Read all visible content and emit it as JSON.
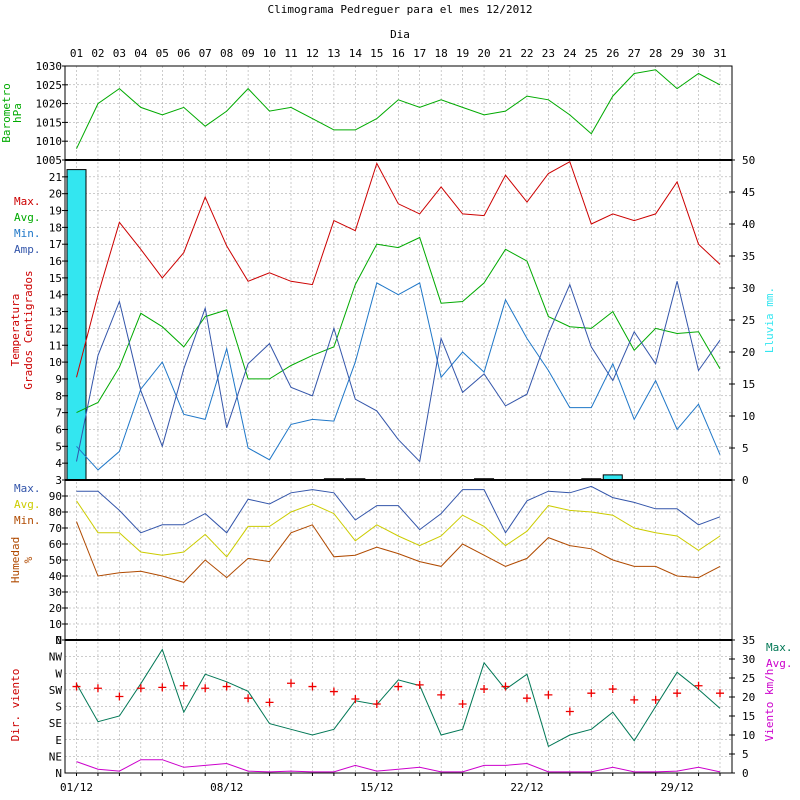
{
  "title": "Climograma Pedreguer para el mes 12/2012",
  "day_axis_label": "Dia",
  "days": [
    "01",
    "02",
    "03",
    "04",
    "05",
    "06",
    "07",
    "08",
    "09",
    "10",
    "11",
    "12",
    "13",
    "14",
    "15",
    "16",
    "17",
    "18",
    "19",
    "20",
    "21",
    "22",
    "23",
    "24",
    "25",
    "26",
    "27",
    "28",
    "29",
    "30",
    "31"
  ],
  "date_ticks": [
    {
      "day": 1,
      "label": "01/12"
    },
    {
      "day": 8,
      "label": "08/12"
    },
    {
      "day": 15,
      "label": "15/12"
    },
    {
      "day": 22,
      "label": "22/12"
    },
    {
      "day": 29,
      "label": "29/12"
    }
  ],
  "colors": {
    "red": "#cc0000",
    "green": "#00aa00",
    "blue": "#1f77c8",
    "navy": "#3355aa",
    "rain": "#33e6f0",
    "yellow": "#cccc00",
    "brown": "#b04a00",
    "teal": "#007755",
    "magenta": "#cc00cc",
    "grid": "#999999"
  },
  "chart_data": [
    {
      "type": "line",
      "panel": "barometro",
      "ylabel": "Barometro hPa",
      "ylim": [
        1005,
        1030
      ],
      "yticks": [
        1005,
        1010,
        1015,
        1020,
        1025,
        1030
      ],
      "series": [
        {
          "name": "Barometro",
          "values": [
            1008,
            1020,
            1024,
            1019,
            1017,
            1019,
            1014,
            1018,
            1024,
            1018,
            1019,
            1016,
            1013,
            1013,
            1016,
            1021,
            1019,
            1021,
            1019,
            1017,
            1018,
            1022,
            1021,
            1017,
            1012,
            1022,
            1028,
            1029,
            1024,
            1028,
            1025
          ]
        }
      ]
    },
    {
      "type": "line",
      "panel": "temperatura",
      "ylabel": "Temperatura Grados Centigrados",
      "ylim": [
        3,
        22
      ],
      "yticks": [
        3,
        4,
        5,
        6,
        7,
        8,
        9,
        10,
        11,
        12,
        13,
        14,
        15,
        16,
        17,
        18,
        19,
        20,
        21,
        22
      ],
      "legend": [
        "Max.",
        "Avg.",
        "Min.",
        "Amp."
      ],
      "series": [
        {
          "name": "Max.",
          "values": [
            9.1,
            14.0,
            18.3,
            16.7,
            15.0,
            16.5,
            19.8,
            16.9,
            14.8,
            15.3,
            14.8,
            14.6,
            18.4,
            17.8,
            21.8,
            19.4,
            18.8,
            20.4,
            18.8,
            18.7,
            21.1,
            19.5,
            21.2,
            21.9,
            18.2,
            18.8,
            18.4,
            18.8,
            20.7,
            17.0,
            15.8
          ]
        },
        {
          "name": "Avg.",
          "values": [
            7.0,
            7.6,
            9.7,
            12.9,
            12.1,
            10.9,
            12.7,
            13.1,
            9.0,
            9.0,
            9.8,
            10.4,
            10.9,
            14.6,
            17.0,
            16.8,
            17.4,
            13.5,
            13.6,
            14.7,
            16.7,
            16.0,
            12.7,
            12.1,
            12.0,
            13.0,
            10.7,
            12.0,
            11.7,
            11.8,
            9.6
          ]
        },
        {
          "name": "Min.",
          "values": [
            5.0,
            3.6,
            4.7,
            8.4,
            10.0,
            6.9,
            6.6,
            10.8,
            4.9,
            4.2,
            6.3,
            6.6,
            6.5,
            10.0,
            14.7,
            14.0,
            14.7,
            9.1,
            10.6,
            9.4,
            13.7,
            11.4,
            9.5,
            7.3,
            7.3,
            9.9,
            6.6,
            8.9,
            6.0,
            7.5,
            4.5
          ]
        },
        {
          "name": "Amp.",
          "values": [
            4.1,
            10.4,
            13.6,
            8.3,
            5.0,
            9.6,
            13.2,
            6.1,
            9.9,
            11.1,
            8.5,
            8.0,
            12.0,
            7.8,
            7.1,
            5.4,
            4.1,
            11.4,
            8.2,
            9.3,
            7.4,
            8.1,
            11.7,
            14.6,
            10.9,
            8.9,
            11.8,
            9.9,
            14.8,
            9.5,
            11.3
          ]
        }
      ]
    },
    {
      "type": "bar",
      "panel": "lluvia",
      "ylabel": "Lluvia mm.",
      "ylim": [
        0,
        50
      ],
      "yticks": [
        0,
        5,
        10,
        15,
        20,
        25,
        30,
        35,
        40,
        45,
        50
      ],
      "series": [
        {
          "name": "Lluvia",
          "values": [
            48.5,
            0,
            0,
            0,
            0,
            0,
            0,
            0,
            0,
            0,
            0,
            0,
            0.2,
            0.2,
            0,
            0,
            0,
            0,
            0,
            0.2,
            0,
            0,
            0,
            0,
            0.2,
            0.8,
            0,
            0,
            0,
            0,
            0
          ]
        }
      ]
    },
    {
      "type": "line",
      "panel": "humedad",
      "ylabel": "Humedad %",
      "ylim": [
        0,
        100
      ],
      "yticks": [
        0,
        10,
        20,
        30,
        40,
        50,
        60,
        70,
        80,
        90
      ],
      "legend": [
        "Max.",
        "Avg.",
        "Min."
      ],
      "series": [
        {
          "name": "Max.",
          "values": [
            93,
            93,
            81,
            67,
            72,
            72,
            79,
            67,
            88,
            85,
            92,
            94,
            92,
            75,
            84,
            84,
            69,
            79,
            94,
            94,
            67,
            87,
            93,
            92,
            96,
            89,
            86,
            82,
            82,
            72,
            77
          ]
        },
        {
          "name": "Avg.",
          "values": [
            87,
            67,
            67,
            55,
            53,
            55,
            66,
            52,
            71,
            71,
            80,
            85,
            79,
            62,
            72,
            65,
            59,
            65,
            78,
            71,
            59,
            68,
            84,
            81,
            80,
            78,
            70,
            67,
            65,
            56,
            65
          ]
        },
        {
          "name": "Min.",
          "values": [
            74,
            40,
            42,
            43,
            40,
            36,
            50,
            39,
            51,
            49,
            67,
            72,
            52,
            53,
            58,
            54,
            49,
            46,
            60,
            53,
            46,
            51,
            64,
            59,
            57,
            50,
            46,
            46,
            40,
            39,
            46
          ]
        }
      ]
    },
    {
      "type": "line",
      "panel": "viento",
      "ylabel": "Dir. viento",
      "y2label": "Viento km/h",
      "ylim": [
        0,
        35
      ],
      "yticks": [
        0,
        5,
        10,
        15,
        20,
        25,
        30,
        35
      ],
      "dir_labels": [
        "N",
        "NE",
        "E",
        "SE",
        "S",
        "SW",
        "W",
        "NW",
        "N"
      ],
      "legend": [
        "Max.",
        "Avg."
      ],
      "series": [
        {
          "name": "Max.",
          "values": [
            23.5,
            13.5,
            15.0,
            23.5,
            32.5,
            16.0,
            26.0,
            24.0,
            21.5,
            13.0,
            11.5,
            10.0,
            11.5,
            19.0,
            18.0,
            24.5,
            23.0,
            10.0,
            11.5,
            29.0,
            22.0,
            26.0,
            7.0,
            10.0,
            11.5,
            16.0,
            8.5,
            17.5,
            26.5,
            22.0,
            17.0
          ]
        },
        {
          "name": "Avg.",
          "values": [
            3.0,
            1.0,
            0.5,
            3.5,
            3.5,
            1.5,
            2.0,
            2.5,
            0.5,
            0.3,
            0.5,
            0.3,
            0.3,
            2.0,
            0.5,
            1.0,
            1.5,
            0.3,
            0.3,
            2.0,
            2.0,
            2.5,
            0.3,
            0.3,
            0.3,
            1.5,
            0.3,
            0.3,
            0.5,
            1.5,
            0.3
          ]
        },
        {
          "name": "Dir.",
          "values": [
            5.2,
            5.1,
            4.6,
            5.1,
            5.15,
            5.25,
            5.1,
            5.2,
            4.5,
            4.25,
            5.4,
            5.2,
            4.9,
            4.45,
            4.15,
            5.2,
            5.3,
            4.7,
            4.15,
            5.05,
            5.2,
            4.5,
            4.7,
            3.7,
            4.8,
            5.05,
            4.4,
            4.4,
            4.8,
            5.25,
            4.8
          ]
        }
      ]
    }
  ]
}
